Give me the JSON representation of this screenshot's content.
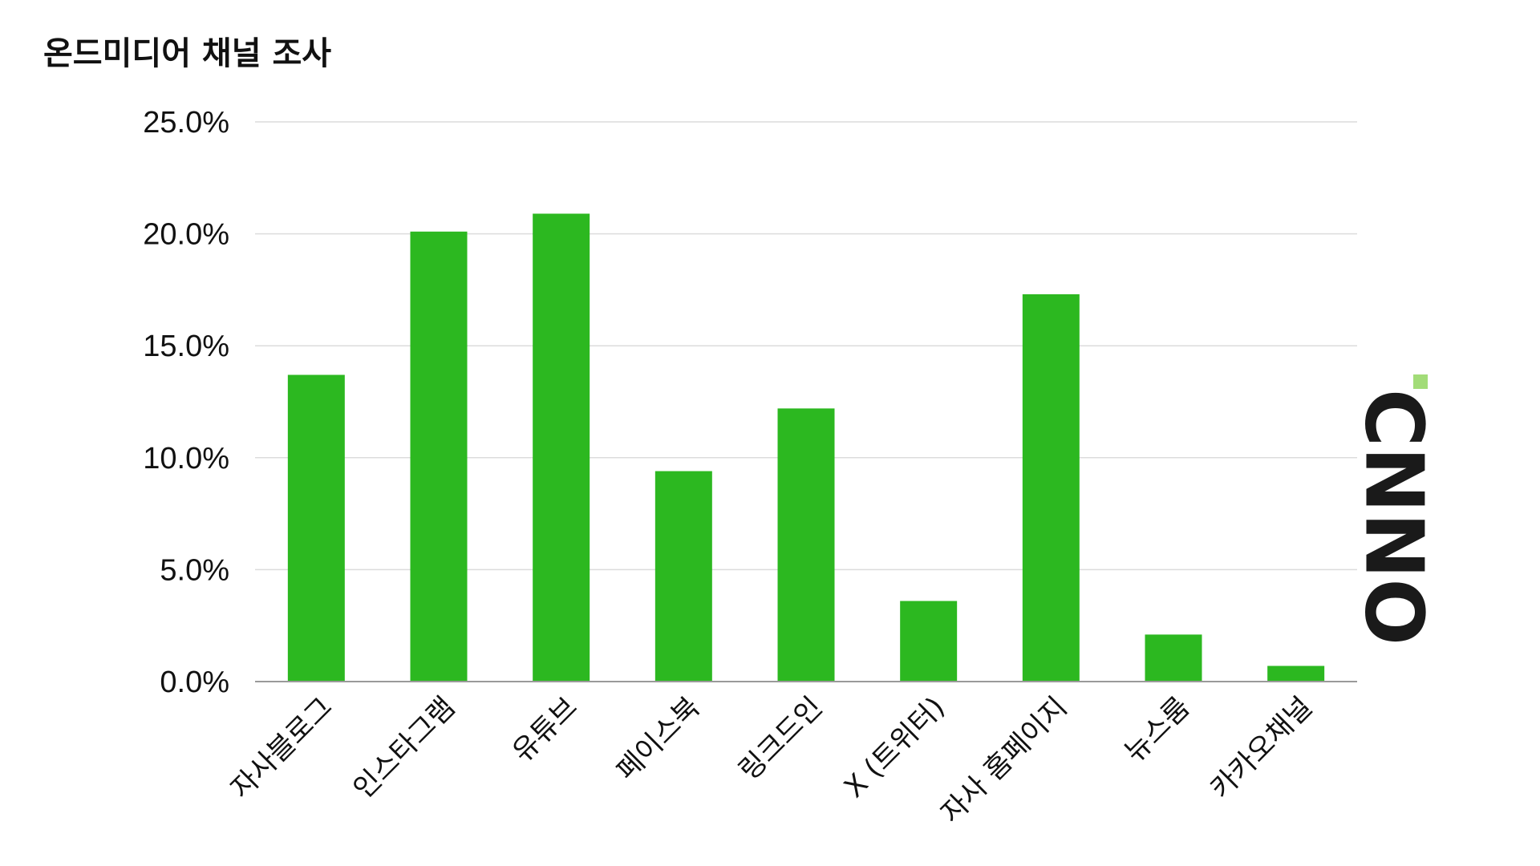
{
  "chart_data": {
    "type": "bar",
    "title": "온드미디어 채널 조사",
    "xlabel": "",
    "ylabel": "",
    "categories": [
      "자사블로그",
      "인스타그램",
      "유튜브",
      "페이스북",
      "링크드인",
      "X (트위터)",
      "자사 홈페이지",
      "뉴스룸",
      "카카오채널"
    ],
    "values": [
      13.7,
      20.1,
      20.9,
      9.4,
      12.2,
      3.6,
      17.3,
      2.1,
      0.7
    ],
    "ylim": [
      0,
      25
    ],
    "yticks": [
      0,
      5,
      10,
      15,
      20,
      25
    ],
    "ytick_labels": [
      "0.0%",
      "5.0%",
      "10.0%",
      "15.0%",
      "20.0%",
      "25.0%"
    ],
    "grid": true,
    "legend": "none"
  },
  "colors": {
    "bar": "#2cb820",
    "logo_accent": "#a2dc78",
    "logo_text": "#1a1a1a"
  },
  "logo": {
    "text": "CNNO"
  }
}
